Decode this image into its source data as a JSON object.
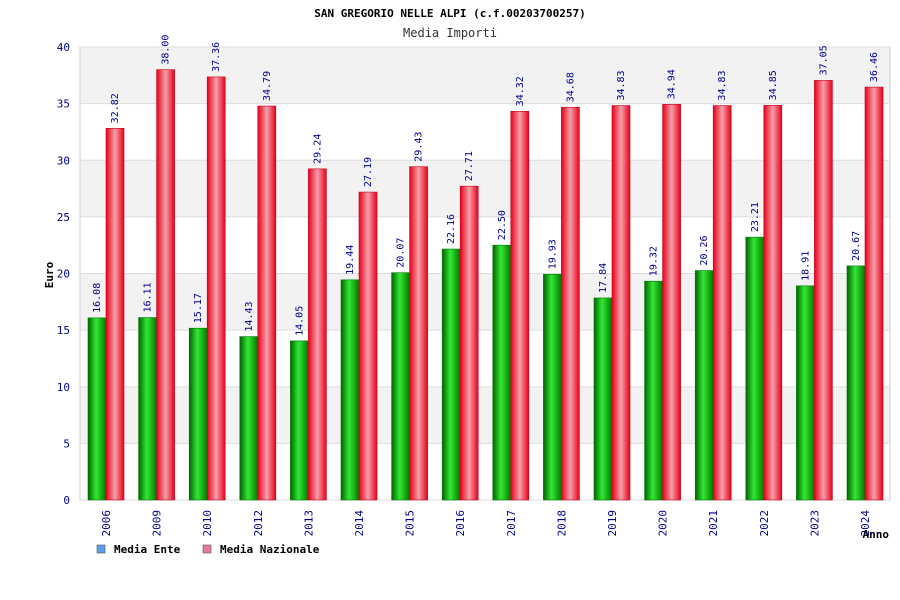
{
  "chart_data": {
    "type": "bar",
    "title": "SAN GREGORIO NELLE ALPI (c.f.00203700257)",
    "subtitle": "Media Importi",
    "xlabel": "Anno",
    "ylabel": "Euro",
    "ylim": [
      0,
      40
    ],
    "yticks": [
      0,
      5,
      10,
      15,
      20,
      25,
      30,
      35,
      40
    ],
    "grid": true,
    "legend_position": "bottom-left",
    "categories": [
      "2006",
      "2009",
      "2010",
      "2012",
      "2013",
      "2014",
      "2015",
      "2016",
      "2017",
      "2018",
      "2019",
      "2020",
      "2021",
      "2022",
      "2023",
      "2024"
    ],
    "series": [
      {
        "name": "Media Ente",
        "color": "#00b400",
        "legend_color": "#5aa0e6",
        "values": [
          16.08,
          16.11,
          15.17,
          14.43,
          14.05,
          19.44,
          20.07,
          22.16,
          22.5,
          19.93,
          17.84,
          19.32,
          20.26,
          23.21,
          18.91,
          20.67
        ],
        "labels": [
          "16.08",
          "16.11",
          "15.17",
          "14.43",
          "14.05",
          "19.44",
          "20.07",
          "22.16",
          "22.50",
          "19.93",
          "17.84",
          "19.32",
          "20.26",
          "23.21",
          "18.91",
          "20.67"
        ]
      },
      {
        "name": "Media Nazionale",
        "color": "#e8001a",
        "legend_color": "#e87aa0",
        "values": [
          32.82,
          38.0,
          37.36,
          34.79,
          29.24,
          27.19,
          29.43,
          27.71,
          34.32,
          34.68,
          34.83,
          34.94,
          34.83,
          34.85,
          37.05,
          36.46
        ],
        "labels": [
          "32.82",
          "38.00",
          "37.36",
          "34.79",
          "29.24",
          "27.19",
          "29.43",
          "27.71",
          "34.32",
          "34.68",
          "34.83",
          "34.94",
          "34.83",
          "34.85",
          "37.05",
          "36.46"
        ]
      }
    ]
  }
}
